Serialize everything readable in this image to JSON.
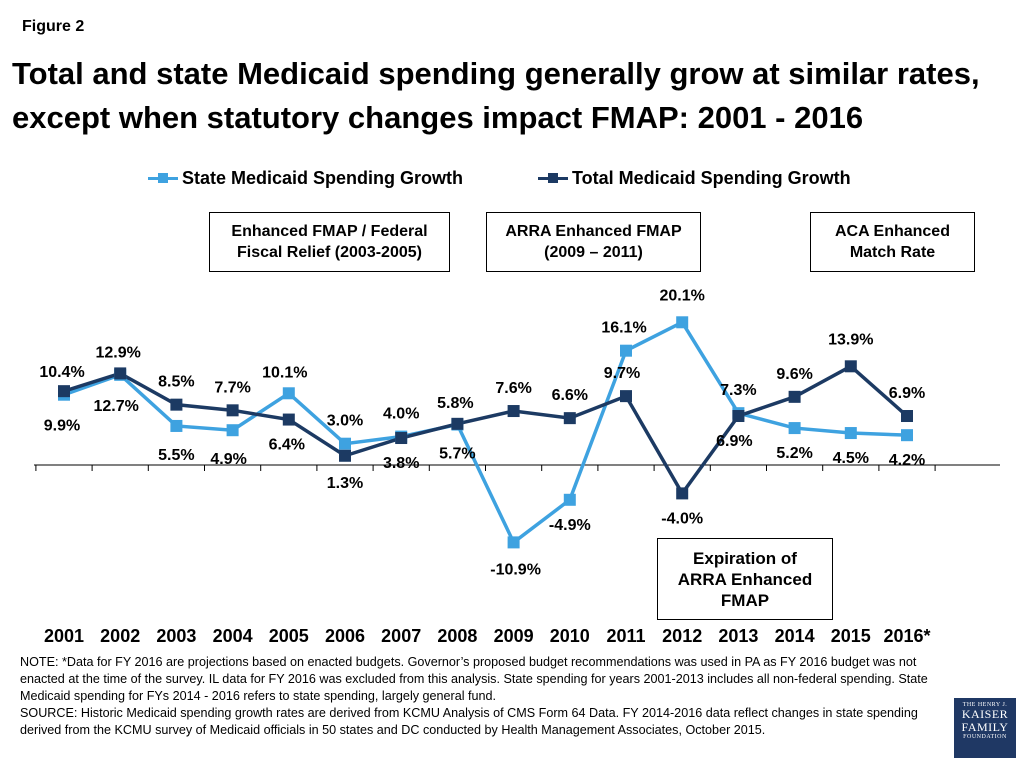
{
  "figure_label": "Figure 2",
  "title": "Total and state Medicaid spending generally grow at similar rates, except when statutory changes impact FMAP: 2001 - 2016",
  "annotations": [
    {
      "text_line1": "Enhanced FMAP / Federal",
      "text_line2": "Fiscal Relief (2003-2005)"
    },
    {
      "text_line1": "ARRA Enhanced FMAP",
      "text_line2": "(2009 – 2011)"
    },
    {
      "text_line1": "ACA Enhanced",
      "text_line2": "Match Rate"
    },
    {
      "text_line1": "Expiration of",
      "text_line2": "ARRA Enhanced",
      "text_line3": "FMAP"
    }
  ],
  "note": "NOTE: *Data for FY 2016 are projections based on enacted budgets. Governor’s proposed budget recommendations was used in PA as FY 2016 budget was not enacted at the time of the survey. IL data for FY 2016 was excluded from this analysis.  State spending for years 2001-2013 includes all non-federal spending.  State Medicaid spending for FYs 2014 - 2016 refers to state spending, largely general fund.",
  "source": "SOURCE: Historic Medicaid spending growth rates are derived from KCMU Analysis of CMS Form 64 Data. FY 2014-2016 data reflect changes in state spending derived from the KCMU survey of Medicaid officials in 50 states and DC conducted by Health Management Associates, October 2015.",
  "logo": {
    "line1": "THE HENRY J.",
    "line2a": "KAISER",
    "line2b": "FAMILY",
    "line3": "FOUNDATION"
  },
  "chart_data": {
    "type": "line",
    "categories": [
      "2001",
      "2002",
      "2003",
      "2004",
      "2005",
      "2006",
      "2007",
      "2008",
      "2009",
      "2010",
      "2011",
      "2012",
      "2013",
      "2014",
      "2015",
      "2016*"
    ],
    "series": [
      {
        "name": "State Medicaid Spending Growth",
        "color": "#3ea2e0",
        "values": [
          9.9,
          12.7,
          5.5,
          4.9,
          10.1,
          3.0,
          4.0,
          5.7,
          -10.9,
          -4.9,
          16.1,
          20.1,
          7.3,
          5.2,
          4.5,
          4.2
        ],
        "labels": [
          "9.9%",
          "12.7%",
          "5.5%",
          "4.9%",
          "10.1%",
          "3.0%",
          "4.0%",
          "5.7%",
          "-10.9%",
          "-4.9%",
          "16.1%",
          "20.1%",
          "7.3%",
          "5.2%",
          "4.5%",
          "4.2%"
        ]
      },
      {
        "name": "Total Medicaid Spending Growth",
        "color": "#1c3a63",
        "values": [
          10.4,
          12.9,
          8.5,
          7.7,
          6.4,
          1.3,
          3.8,
          5.8,
          7.6,
          6.6,
          9.7,
          -4.0,
          6.9,
          9.6,
          13.9,
          6.9
        ],
        "labels": [
          "10.4%",
          "12.9%",
          "8.5%",
          "7.7%",
          "6.4%",
          "1.3%",
          "3.8%",
          "5.8%",
          "7.6%",
          "6.6%",
          "9.7%",
          "-4.0%",
          "6.9%",
          "9.6%",
          "13.9%",
          "6.9%"
        ]
      }
    ],
    "ylim": [
      -12,
      22
    ],
    "grid": false,
    "legend_position": "top"
  }
}
